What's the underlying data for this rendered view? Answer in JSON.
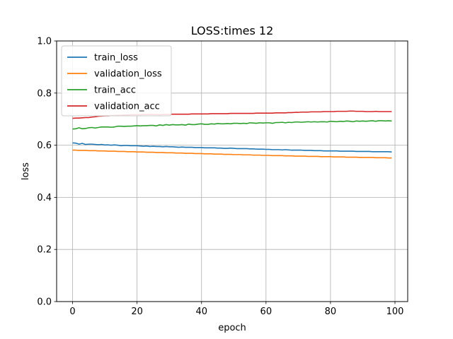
{
  "chart_data": {
    "type": "line",
    "title": "LOSS:times 12",
    "xlabel": "epoch",
    "ylabel": "loss",
    "xlim": [
      -4.95,
      103.95
    ],
    "ylim": [
      0.0,
      1.0
    ],
    "xticks": [
      0,
      20,
      40,
      60,
      80,
      100
    ],
    "yticks": [
      0.0,
      0.2,
      0.4,
      0.6,
      0.8,
      1.0
    ],
    "xtick_labels": [
      "0",
      "20",
      "40",
      "60",
      "80",
      "100"
    ],
    "ytick_labels": [
      "0.0",
      "0.2",
      "0.4",
      "0.6",
      "0.8",
      "1.0"
    ],
    "grid": true,
    "legend_position": "top-left",
    "x": [
      0,
      1,
      2,
      3,
      4,
      5,
      6,
      7,
      8,
      9,
      10,
      11,
      12,
      13,
      14,
      15,
      16,
      17,
      18,
      19,
      20,
      21,
      22,
      23,
      24,
      25,
      26,
      27,
      28,
      29,
      30,
      31,
      32,
      33,
      34,
      35,
      36,
      37,
      38,
      39,
      40,
      41,
      42,
      43,
      44,
      45,
      46,
      47,
      48,
      49,
      50,
      51,
      52,
      53,
      54,
      55,
      56,
      57,
      58,
      59,
      60,
      61,
      62,
      63,
      64,
      65,
      66,
      67,
      68,
      69,
      70,
      71,
      72,
      73,
      74,
      75,
      76,
      77,
      78,
      79,
      80,
      81,
      82,
      83,
      84,
      85,
      86,
      87,
      88,
      89,
      90,
      91,
      92,
      93,
      94,
      95,
      96,
      97,
      98,
      99
    ],
    "series": [
      {
        "name": "train_loss",
        "color": "#1f77b4",
        "values": [
          0.609,
          0.608,
          0.604,
          0.607,
          0.603,
          0.604,
          0.604,
          0.603,
          0.602,
          0.603,
          0.601,
          0.601,
          0.6,
          0.601,
          0.6,
          0.598,
          0.599,
          0.599,
          0.598,
          0.598,
          0.598,
          0.597,
          0.596,
          0.597,
          0.595,
          0.596,
          0.595,
          0.595,
          0.594,
          0.595,
          0.594,
          0.594,
          0.593,
          0.592,
          0.593,
          0.592,
          0.592,
          0.592,
          0.591,
          0.591,
          0.591,
          0.59,
          0.59,
          0.59,
          0.59,
          0.589,
          0.589,
          0.588,
          0.588,
          0.589,
          0.588,
          0.587,
          0.587,
          0.587,
          0.587,
          0.586,
          0.586,
          0.585,
          0.585,
          0.585,
          0.584,
          0.584,
          0.583,
          0.583,
          0.583,
          0.582,
          0.583,
          0.582,
          0.581,
          0.581,
          0.581,
          0.581,
          0.58,
          0.58,
          0.58,
          0.579,
          0.579,
          0.579,
          0.578,
          0.578,
          0.578,
          0.578,
          0.578,
          0.577,
          0.577,
          0.577,
          0.577,
          0.577,
          0.576,
          0.576,
          0.576,
          0.576,
          0.576,
          0.575,
          0.575,
          0.575,
          0.575,
          0.575,
          0.575,
          0.574
        ]
      },
      {
        "name": "validation_loss",
        "color": "#ff7f0e",
        "values": [
          0.581,
          0.581,
          0.58,
          0.58,
          0.58,
          0.579,
          0.579,
          0.579,
          0.578,
          0.578,
          0.578,
          0.577,
          0.577,
          0.577,
          0.576,
          0.576,
          0.576,
          0.575,
          0.575,
          0.575,
          0.574,
          0.574,
          0.574,
          0.573,
          0.573,
          0.573,
          0.572,
          0.572,
          0.572,
          0.571,
          0.571,
          0.571,
          0.57,
          0.57,
          0.57,
          0.569,
          0.569,
          0.569,
          0.568,
          0.568,
          0.568,
          0.567,
          0.567,
          0.567,
          0.566,
          0.566,
          0.566,
          0.565,
          0.565,
          0.565,
          0.564,
          0.564,
          0.564,
          0.563,
          0.563,
          0.563,
          0.562,
          0.562,
          0.562,
          0.561,
          0.561,
          0.561,
          0.56,
          0.56,
          0.56,
          0.56,
          0.559,
          0.559,
          0.559,
          0.558,
          0.558,
          0.558,
          0.558,
          0.557,
          0.557,
          0.557,
          0.557,
          0.556,
          0.556,
          0.556,
          0.556,
          0.555,
          0.555,
          0.555,
          0.555,
          0.554,
          0.554,
          0.554,
          0.554,
          0.553,
          0.553,
          0.553,
          0.553,
          0.553,
          0.552,
          0.552,
          0.552,
          0.552,
          0.551,
          0.551
        ]
      },
      {
        "name": "train_acc",
        "color": "#2ca02c",
        "values": [
          0.662,
          0.663,
          0.667,
          0.663,
          0.664,
          0.667,
          0.668,
          0.666,
          0.668,
          0.67,
          0.67,
          0.67,
          0.669,
          0.67,
          0.673,
          0.673,
          0.672,
          0.673,
          0.673,
          0.674,
          0.675,
          0.674,
          0.675,
          0.675,
          0.676,
          0.676,
          0.674,
          0.678,
          0.676,
          0.679,
          0.677,
          0.679,
          0.678,
          0.678,
          0.679,
          0.677,
          0.681,
          0.679,
          0.679,
          0.681,
          0.682,
          0.68,
          0.68,
          0.682,
          0.681,
          0.683,
          0.682,
          0.682,
          0.683,
          0.682,
          0.684,
          0.684,
          0.683,
          0.684,
          0.683,
          0.686,
          0.685,
          0.684,
          0.686,
          0.685,
          0.686,
          0.686,
          0.684,
          0.687,
          0.687,
          0.688,
          0.686,
          0.688,
          0.687,
          0.689,
          0.689,
          0.688,
          0.689,
          0.69,
          0.689,
          0.69,
          0.689,
          0.69,
          0.69,
          0.689,
          0.692,
          0.691,
          0.69,
          0.692,
          0.691,
          0.693,
          0.692,
          0.69,
          0.693,
          0.692,
          0.693,
          0.692,
          0.693,
          0.694,
          0.692,
          0.694,
          0.694,
          0.693,
          0.694,
          0.693
        ]
      },
      {
        "name": "validation_acc",
        "color": "#d62728",
        "values": [
          0.703,
          0.704,
          0.704,
          0.705,
          0.706,
          0.706,
          0.708,
          0.709,
          0.711,
          0.712,
          0.713,
          0.713,
          0.714,
          0.714,
          0.715,
          0.715,
          0.716,
          0.716,
          0.717,
          0.717,
          0.717,
          0.717,
          0.718,
          0.718,
          0.718,
          0.718,
          0.718,
          0.717,
          0.718,
          0.718,
          0.718,
          0.719,
          0.719,
          0.719,
          0.719,
          0.719,
          0.719,
          0.72,
          0.72,
          0.72,
          0.72,
          0.72,
          0.72,
          0.721,
          0.721,
          0.721,
          0.721,
          0.721,
          0.721,
          0.722,
          0.722,
          0.722,
          0.722,
          0.722,
          0.722,
          0.722,
          0.722,
          0.723,
          0.723,
          0.723,
          0.723,
          0.723,
          0.723,
          0.724,
          0.724,
          0.724,
          0.724,
          0.725,
          0.725,
          0.726,
          0.726,
          0.727,
          0.727,
          0.727,
          0.728,
          0.728,
          0.728,
          0.728,
          0.729,
          0.729,
          0.729,
          0.729,
          0.73,
          0.73,
          0.73,
          0.73,
          0.731,
          0.731,
          0.73,
          0.73,
          0.73,
          0.729,
          0.729,
          0.729,
          0.73,
          0.729,
          0.729,
          0.729,
          0.729,
          0.729
        ]
      }
    ]
  }
}
